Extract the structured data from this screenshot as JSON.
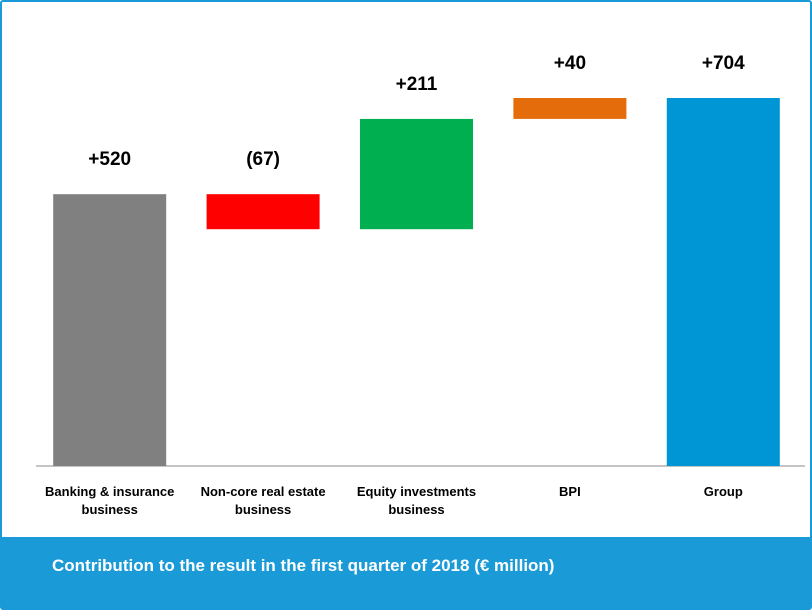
{
  "chart_data": {
    "type": "waterfall",
    "title": "Contribution to the result in the first quarter of 2018 (€ million)",
    "categories": [
      "Banking & insurance business",
      "Non-core real estate business",
      "Equity investments business",
      "BPI",
      "Group"
    ],
    "values": [
      520,
      -67,
      211,
      40,
      704
    ],
    "value_labels": [
      "+520",
      "(67)",
      "+211",
      "+40",
      "+704"
    ],
    "is_total": [
      false,
      false,
      false,
      false,
      true
    ],
    "colors": [
      "#808080",
      "#ff0000",
      "#00b050",
      "#e46c0a",
      "#0096d6"
    ]
  }
}
